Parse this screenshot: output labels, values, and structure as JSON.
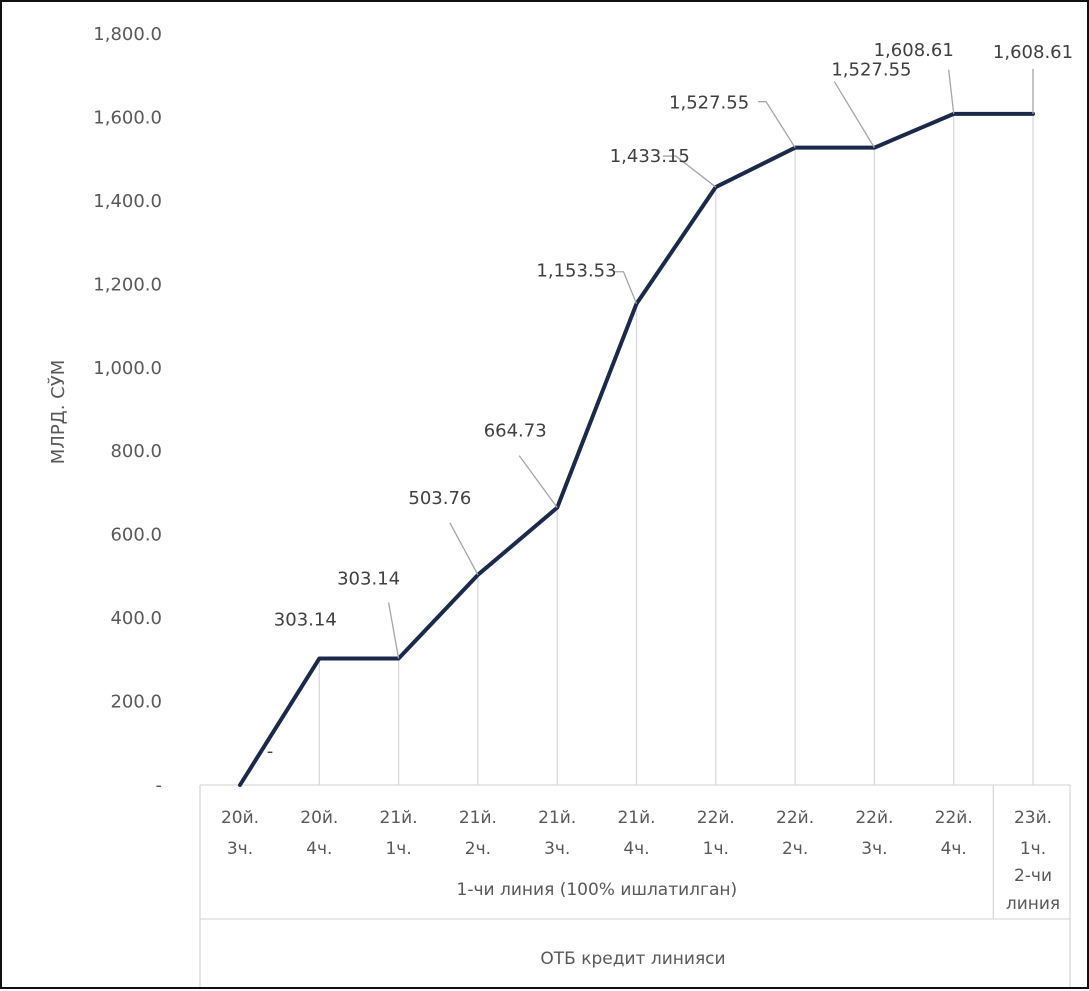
{
  "chart_data": {
    "type": "line",
    "ylabel": "МЛРД. СЎМ",
    "ylim": [
      0,
      1800
    ],
    "yticks": [
      {
        "value": 0,
        "label": "-"
      },
      {
        "value": 200,
        "label": "200.0"
      },
      {
        "value": 400,
        "label": "400.0"
      },
      {
        "value": 600,
        "label": "600.0"
      },
      {
        "value": 800,
        "label": "800.0"
      },
      {
        "value": 1000,
        "label": "1,000.0"
      },
      {
        "value": 1200,
        "label": "1,200.0"
      },
      {
        "value": 1400,
        "label": "1,400.0"
      },
      {
        "value": 1600,
        "label": "1,600.0"
      },
      {
        "value": 1800,
        "label": "1,800.0"
      }
    ],
    "categories": [
      [
        "20й.",
        "3ч."
      ],
      [
        "20й.",
        "4ч."
      ],
      [
        "21й.",
        "1ч."
      ],
      [
        "21й.",
        "2ч."
      ],
      [
        "21й.",
        "3ч."
      ],
      [
        "21й.",
        "4ч."
      ],
      [
        "22й.",
        "1ч."
      ],
      [
        "22й.",
        "2ч."
      ],
      [
        "22й.",
        "3ч."
      ],
      [
        "22й.",
        "4ч."
      ],
      [
        "23й.",
        "1ч."
      ]
    ],
    "groups": [
      {
        "label": [
          "1-чи линия (100% ишлатилган)"
        ],
        "start": 0,
        "end": 9
      },
      {
        "label": [
          "2-чи",
          "линия"
        ],
        "start": 10,
        "end": 10
      }
    ],
    "outer_group": {
      "label": "ОТБ кредит линияси",
      "start": 0,
      "end": 10
    },
    "series": [
      {
        "values": [
          0,
          303.14,
          303.14,
          503.76,
          664.73,
          1153.53,
          1433.15,
          1527.55,
          1527.55,
          1608.61,
          1608.61
        ],
        "labels": [
          "-",
          "303.14",
          "303.14",
          "503.76",
          "664.73",
          "1,153.53",
          "1,433.15",
          "1,527.55",
          "1,527.55",
          "1,608.61",
          "1,608.61"
        ],
        "color": "#1b2a4a"
      }
    ],
    "grid": "vertical"
  }
}
